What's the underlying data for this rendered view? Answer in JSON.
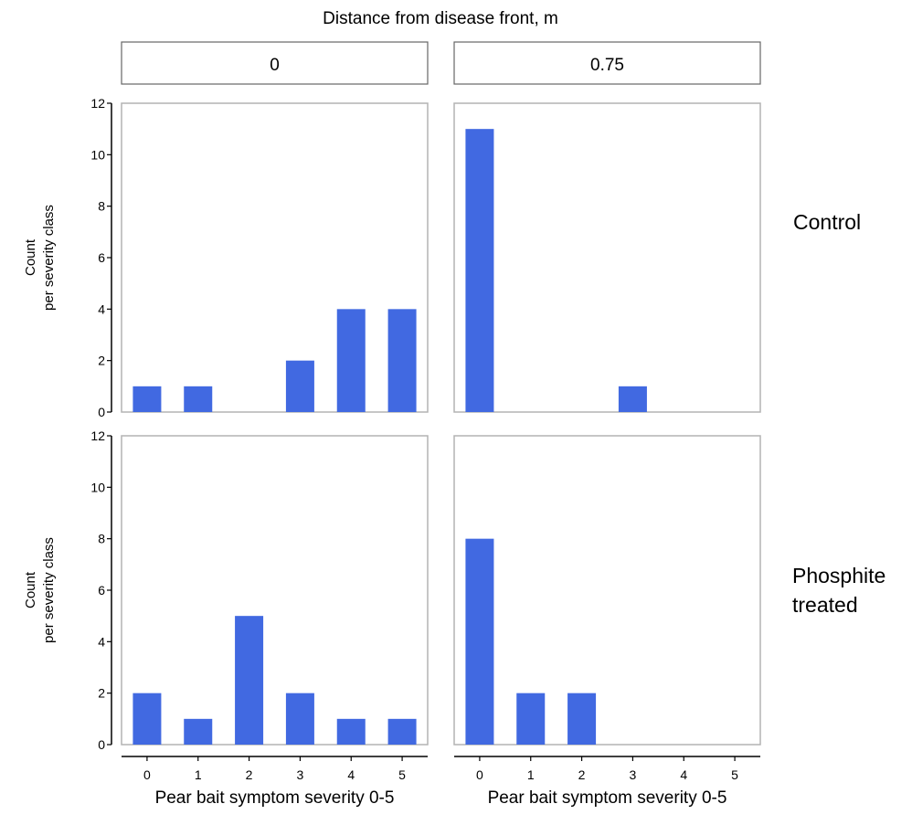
{
  "colors": {
    "bar": "#4169e1"
  },
  "facet_title": "Distance from disease front, m",
  "columns": [
    "0",
    "0.75"
  ],
  "rows": [
    "Control",
    "Phosphite treated"
  ],
  "chart_data": {
    "type": "bar",
    "title": "Distance from disease front, m",
    "xlabel": "Pear bait symptom severity 0-5",
    "ylabel": "Count\nper severity class",
    "categories": [
      "0",
      "1",
      "2",
      "3",
      "4",
      "5"
    ],
    "ylim": [
      0,
      12
    ],
    "yticks": [
      0,
      2,
      4,
      6,
      8,
      10,
      12
    ],
    "grid": false,
    "facets": [
      {
        "row": "Control",
        "column": "0",
        "values": [
          1,
          1,
          0,
          2,
          4,
          4
        ]
      },
      {
        "row": "Control",
        "column": "0.75",
        "values": [
          11,
          0,
          0,
          1,
          0,
          0
        ]
      },
      {
        "row": "Phosphite treated",
        "column": "0",
        "values": [
          2,
          1,
          5,
          2,
          1,
          1
        ]
      },
      {
        "row": "Phosphite treated",
        "column": "0.75",
        "values": [
          8,
          2,
          2,
          0,
          0,
          0
        ]
      }
    ]
  }
}
